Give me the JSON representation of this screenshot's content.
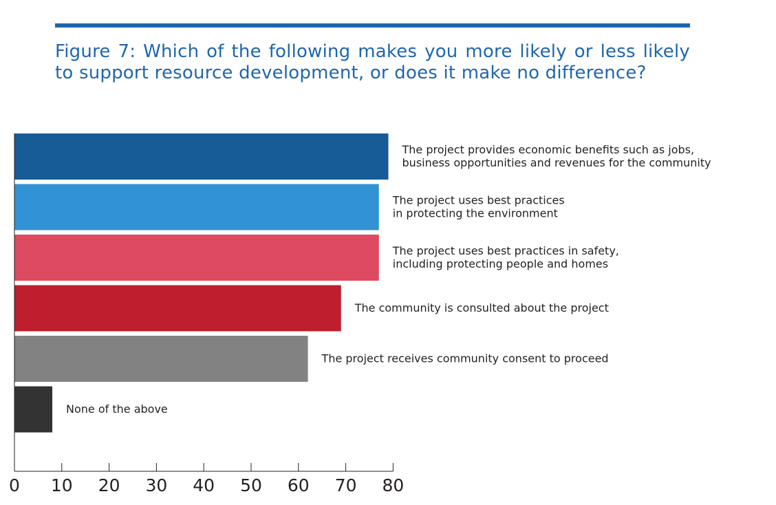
{
  "figure": {
    "title": "Figure 7: Which of the following makes you more likely or less likely to support resource development, or does it make no difference?"
  },
  "colors": {
    "title": "#1f66ad",
    "rule": "#1f66ad",
    "axis": "#231f20"
  },
  "chart_data": {
    "type": "bar",
    "orientation": "horizontal",
    "categories": [
      [
        "The project provides economic benefits such as jobs,",
        "business opportunities and revenues for the community"
      ],
      [
        "The project uses best practices",
        "in protecting the environment"
      ],
      [
        "The project uses best practices in safety,",
        "including protecting people and homes"
      ],
      [
        "The community is consulted about the project"
      ],
      [
        "The project receives community consent to proceed"
      ],
      [
        "None of the above"
      ]
    ],
    "values": [
      79,
      77,
      77,
      69,
      62,
      8
    ],
    "bar_colors": [
      "#175c96",
      "#3193d3",
      "#de4a60",
      "#be1e2d",
      "#828282",
      "#333333"
    ],
    "xlim": [
      0,
      80
    ],
    "xticks": [
      "0",
      "10",
      "20",
      "30",
      "40",
      "50",
      "60",
      "70",
      "80"
    ],
    "xlabel": "",
    "ylabel": "",
    "grid": false,
    "legend": "none"
  }
}
